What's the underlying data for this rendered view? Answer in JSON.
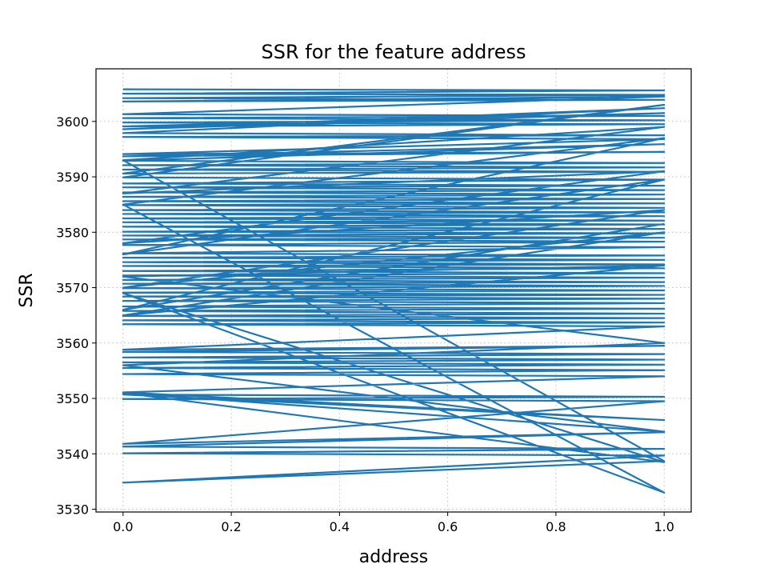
{
  "chart_data": {
    "type": "line",
    "title": "SSR for the feature address",
    "xlabel": "address",
    "ylabel": "SSR",
    "xlim": [
      -0.05,
      1.05
    ],
    "ylim": [
      3529.5,
      3609.5
    ],
    "xticks": [
      "0.0",
      "0.2",
      "0.4",
      "0.6",
      "0.8",
      "1.0"
    ],
    "yticks": [
      "3530",
      "3540",
      "3550",
      "3560",
      "3570",
      "3580",
      "3590",
      "3600"
    ],
    "grid": true,
    "series": [
      {
        "color": "#1f77b4",
        "x": [
          0,
          1,
          0,
          1,
          0,
          1,
          0,
          1,
          0,
          1,
          0,
          1,
          0,
          1,
          0,
          1,
          0,
          1,
          0,
          1,
          0,
          1,
          0,
          1,
          0,
          1,
          0,
          1,
          0,
          1,
          0,
          1,
          0,
          1,
          0,
          1,
          0,
          1,
          0,
          1,
          0,
          1,
          0,
          1,
          0,
          1,
          0,
          1,
          0,
          1,
          0,
          1,
          0,
          1,
          0,
          1,
          0,
          1,
          0,
          1,
          0,
          1,
          0,
          1,
          0,
          1,
          0,
          1,
          0,
          1,
          0,
          1,
          0,
          1,
          0,
          1,
          0,
          1,
          0,
          1,
          0,
          1,
          0,
          1,
          0,
          1,
          0,
          1,
          0,
          1,
          0,
          1,
          0,
          1,
          0,
          1,
          0,
          1,
          0,
          1,
          0,
          1,
          0,
          1,
          0,
          1,
          0,
          1,
          0,
          1,
          0,
          1,
          0,
          1,
          0,
          1,
          0,
          1,
          0,
          1,
          0,
          1,
          0,
          1,
          0,
          1,
          0,
          1,
          0,
          1,
          0,
          1,
          0,
          1,
          0,
          1,
          0,
          1,
          0,
          1,
          0,
          1,
          0,
          1,
          0,
          1,
          0,
          1,
          0,
          1
        ],
        "y": [
          3605.8,
          3605.6,
          3605.0,
          3604.8,
          3604.2,
          3603.9,
          3603.6,
          3604.5,
          3601.3,
          3601.0,
          3600.6,
          3600.2,
          3599.8,
          3599.5,
          3599.1,
          3601.5,
          3598.6,
          3602.4,
          3597.9,
          3597.5,
          3597.2,
          3596.8,
          3594.1,
          3594.5,
          3593.7,
          3595.9,
          3592.9,
          3592.5,
          3592.1,
          3591.7,
          3591.3,
          3590.9,
          3590.6,
          3603.0,
          3589.9,
          3589.5,
          3588.8,
          3588.4,
          3588.1,
          3587.6,
          3587.2,
          3586.8,
          3586.4,
          3586.0,
          3585.6,
          3585.2,
          3584.9,
          3584.4,
          3584.0,
          3583.6,
          3583.3,
          3582.9,
          3582.5,
          3582.1,
          3581.8,
          3581.4,
          3581.0,
          3580.6,
          3580.1,
          3579.8,
          3579.4,
          3579.0,
          3578.7,
          3578.3,
          3577.7,
          3577.3,
          3576.2,
          3575.8,
          3575.4,
          3575.0,
          3574.6,
          3574.2,
          3573.9,
          3573.5,
          3573.0,
          3572.6,
          3572.2,
          3571.8,
          3571.4,
          3571.0,
          3570.7,
          3570.3,
          3569.9,
          3569.5,
          3569.1,
          3568.7,
          3568.4,
          3568.0,
          3567.6,
          3567.2,
          3566.6,
          3566.2,
          3565.8,
          3565.3,
          3564.9,
          3564.5,
          3564.1,
          3563.7,
          3563.4,
          3563.0,
          3558.8,
          3559.5,
          3558.4,
          3558.0,
          3557.4,
          3557.0,
          3556.5,
          3556.1,
          3555.5,
          3555.1,
          3554.4,
          3554.0,
          3551.1,
          3546.1,
          3550.7,
          3550.3,
          3549.9,
          3549.5,
          3541.8,
          3543.9,
          3541.3,
          3540.9,
          3540.1,
          3539.7,
          3534.8,
          3538.7,
          3593.0,
          3599.0,
          3587.0,
          3591.0,
          3578.0,
          3584.0,
          3570.0,
          3580.0,
          3565.0,
          3574.0,
          3572.0,
          3560.0,
          3556.0,
          3544.0,
          3551.0,
          3538.5,
          3569.0,
          3533.0,
          3585.0,
          3597.0,
          3576.0,
          3589.5,
          3566.0,
          3581.5
        ]
      }
    ]
  }
}
